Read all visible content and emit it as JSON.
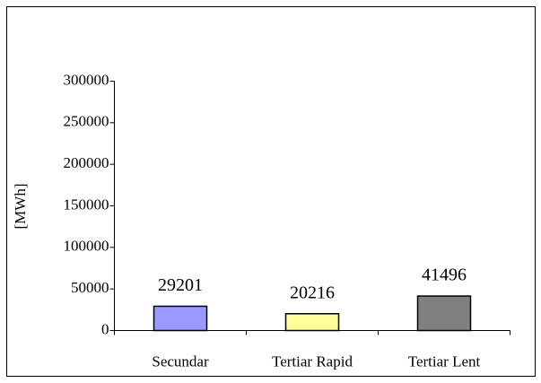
{
  "chart_data": {
    "type": "bar",
    "y_label": "[MWh]",
    "categories": [
      "Secundar",
      "Tertiar Rapid",
      "Tertiar Lent"
    ],
    "values": [
      29201,
      20216,
      41496
    ],
    "colors": [
      "#9999ff",
      "#ffff99",
      "#808080"
    ],
    "ylim": [
      0,
      300000
    ],
    "yticks": [
      0,
      50000,
      100000,
      150000,
      200000,
      250000,
      300000
    ],
    "grid": false
  }
}
